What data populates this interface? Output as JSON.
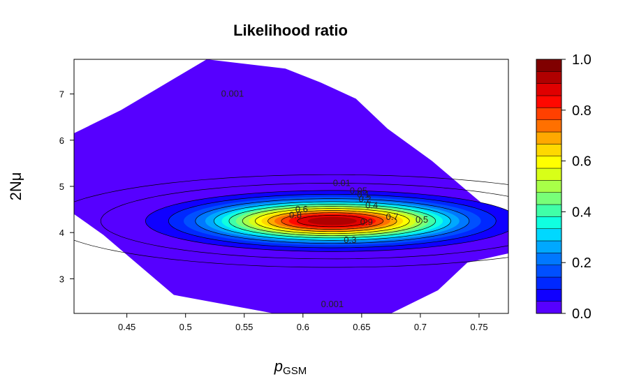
{
  "chart_data": {
    "type": "heatmap",
    "subtype": "filled-contour",
    "title": "Likelihood ratio",
    "xlabel": {
      "main": "p",
      "sub": "GSM"
    },
    "ylabel": {
      "main": "2N",
      "greek": "μ"
    },
    "xlim": [
      0.405,
      0.775
    ],
    "ylim": [
      2.25,
      7.75
    ],
    "xticks": [
      0.45,
      0.5,
      0.55,
      0.6,
      0.65,
      0.7,
      0.75
    ],
    "xtick_labels": [
      "0.45",
      "0.5",
      "0.55",
      "0.6",
      "0.65",
      "0.7",
      "0.75"
    ],
    "yticks": [
      3,
      4,
      5,
      6,
      7
    ],
    "ytick_labels": [
      "3",
      "4",
      "5",
      "6",
      "7"
    ],
    "peak": {
      "x": 0.625,
      "y": 4.25,
      "value": 1.0
    },
    "surface_region": [
      [
        0.405,
        6.15
      ],
      [
        0.445,
        6.65
      ],
      [
        0.518,
        7.75
      ],
      [
        0.585,
        7.55
      ],
      [
        0.615,
        7.25
      ],
      [
        0.645,
        6.9
      ],
      [
        0.672,
        6.25
      ],
      [
        0.71,
        5.55
      ],
      [
        0.74,
        4.9
      ],
      [
        0.775,
        4.15
      ],
      [
        0.775,
        3.55
      ],
      [
        0.74,
        3.35
      ],
      [
        0.715,
        2.75
      ],
      [
        0.675,
        2.25
      ],
      [
        0.575,
        2.25
      ],
      [
        0.49,
        2.65
      ],
      [
        0.43,
        3.95
      ],
      [
        0.405,
        4.4
      ]
    ],
    "fill_levels": [
      0.0,
      0.05,
      0.1,
      0.15,
      0.2,
      0.25,
      0.3,
      0.35,
      0.4,
      0.45,
      0.5,
      0.55,
      0.6,
      0.65,
      0.7,
      0.75,
      0.8,
      0.85,
      0.9,
      0.95,
      1.0
    ],
    "fill_colors": [
      "#5600ff",
      "#1000ff",
      "#0028ff",
      "#0050ff",
      "#0078ff",
      "#00a8ff",
      "#00d8ff",
      "#10ffe0",
      "#40ffa8",
      "#78ff78",
      "#a8ff48",
      "#d8ff18",
      "#ffff00",
      "#ffd800",
      "#ffa800",
      "#ff7000",
      "#ff4000",
      "#ff0800",
      "#e00000",
      "#b00000"
    ],
    "contours": [
      {
        "level": 0.001,
        "label": "0.001",
        "label_positions": [
          [
            0.54,
            7.0
          ],
          [
            0.625,
            2.45
          ]
        ]
      },
      {
        "level": 0.01,
        "label": "0.01"
      },
      {
        "level": 0.05,
        "label": "0.05"
      },
      {
        "level": 0.1,
        "label": "0.1"
      },
      {
        "level": 0.2,
        "label": "0.2"
      },
      {
        "level": 0.3,
        "label": "0.3"
      },
      {
        "level": 0.4,
        "label": "0.4"
      },
      {
        "level": 0.5,
        "label": "0.5"
      },
      {
        "level": 0.6,
        "label": "0.6"
      },
      {
        "level": 0.7,
        "label": "0.7"
      },
      {
        "level": 0.8,
        "label": "0.8"
      },
      {
        "level": 0.9,
        "label": "0.9"
      }
    ],
    "key": {
      "ticks": [
        "1.0",
        "0.8",
        "0.6",
        "0.4",
        "0.2",
        "0.0"
      ],
      "tick_values": [
        1.0,
        0.8,
        0.6,
        0.4,
        0.2,
        0.0
      ],
      "colors_bottom_to_top": [
        "#5600ff",
        "#1000ff",
        "#0028ff",
        "#0050ff",
        "#0078ff",
        "#00a8ff",
        "#00d8ff",
        "#10ffe0",
        "#40ffa8",
        "#78ff78",
        "#a8ff48",
        "#d8ff18",
        "#ffff00",
        "#ffd800",
        "#ffa800",
        "#ff7000",
        "#ff4000",
        "#ff0800",
        "#e00000",
        "#b00000",
        "#800000"
      ]
    },
    "grid": false,
    "legend": "right"
  }
}
